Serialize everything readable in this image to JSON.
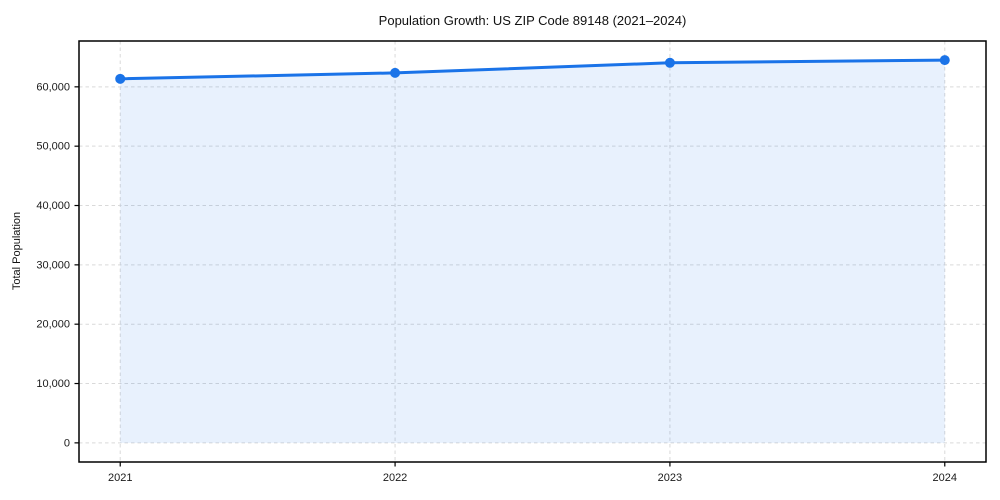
{
  "chart_data": {
    "type": "line",
    "title": "Population Growth: US ZIP Code 89148 (2021–2024)",
    "xlabel": "",
    "ylabel": "Total Population",
    "x": [
      2021,
      2022,
      2023,
      2024
    ],
    "series": [
      {
        "name": "Total Population",
        "values": [
          61350,
          62350,
          64050,
          64500
        ]
      }
    ],
    "fill_to_zero": true,
    "xlim": [
      2020.85,
      2024.15
    ],
    "ylim": [
      -3225,
      67725
    ],
    "xticks": [
      2021,
      2022,
      2023,
      2024
    ],
    "xtick_labels": [
      "2021",
      "2022",
      "2023",
      "2024"
    ],
    "yticks": [
      0,
      10000,
      20000,
      30000,
      40000,
      50000,
      60000
    ],
    "ytick_labels": [
      "0",
      "10,000",
      "20,000",
      "30,000",
      "40,000",
      "50,000",
      "60,000"
    ],
    "grid": true,
    "grid_style": "dashed",
    "legend_position": "none",
    "colors": {
      "line": "#1a73e8",
      "marker": "#1a73e8",
      "fill": "#1a73e8",
      "fill_opacity": 0.1,
      "grid": "#d9d9d9",
      "spine": "#000000",
      "tick": "#000000",
      "tick_label": "#1a1a1a",
      "background": "#ffffff"
    }
  }
}
